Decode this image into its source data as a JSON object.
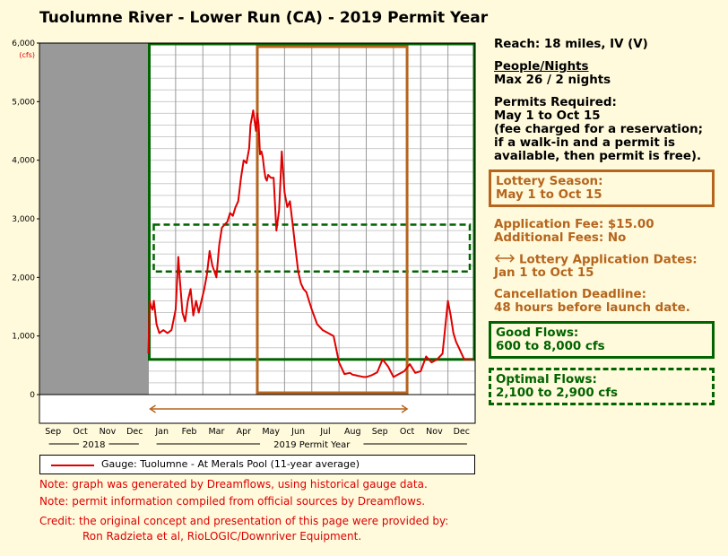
{
  "title": "Tuolumne River - Lower Run (CA) - 2019 Permit Year",
  "colors": {
    "flow_line": "#e00000",
    "permit_brown": "#b5651d",
    "good_green": "#006400",
    "past_gray": "#999999"
  },
  "chart_data": {
    "type": "line",
    "ylim": [
      0,
      6000
    ],
    "y_ticks": [
      "0",
      "1,000",
      "2,000",
      "3,000",
      "4,000",
      "5,000",
      "6,000"
    ],
    "y_unit": "(cfs)",
    "months": [
      "Sep",
      "Oct",
      "Nov",
      "Dec",
      "Jan",
      "Feb",
      "Mar",
      "Apr",
      "May",
      "Jun",
      "Jul",
      "Aug",
      "Sep",
      "Oct",
      "Nov",
      "Dec"
    ],
    "year_labels": {
      "prev": "2018",
      "current": "2019 Permit Year"
    },
    "past_months_shaded": 4,
    "series": [
      {
        "name": "Gauge: Tuolumne - At Merals Pool (11-year average)",
        "x_month": [
          4.0,
          4.05,
          4.1,
          4.15,
          4.2,
          4.3,
          4.4,
          4.55,
          4.7,
          4.85,
          5.0,
          5.1,
          5.15,
          5.25,
          5.35,
          5.45,
          5.55,
          5.65,
          5.75,
          5.85,
          5.95,
          6.05,
          6.15,
          6.25,
          6.35,
          6.5,
          6.6,
          6.7,
          6.8,
          6.9,
          7.0,
          7.1,
          7.2,
          7.3,
          7.4,
          7.5,
          7.6,
          7.7,
          7.75,
          7.85,
          7.95,
          8.0,
          8.05,
          8.1,
          8.15,
          8.2,
          8.25,
          8.3,
          8.35,
          8.4,
          8.5,
          8.6,
          8.7,
          8.8,
          8.9,
          9.0,
          9.1,
          9.2,
          9.3,
          9.4,
          9.5,
          9.6,
          9.7,
          9.8,
          9.9,
          10.0,
          10.2,
          10.4,
          10.6,
          10.8,
          11.0,
          11.2,
          11.4,
          11.5,
          11.6,
          11.7,
          11.8,
          11.9,
          12.0,
          12.2,
          12.4,
          12.6,
          12.8,
          13.0,
          13.2,
          13.4,
          13.6,
          13.8,
          14.0,
          14.2,
          14.4,
          14.6,
          14.8,
          15.0,
          15.1,
          15.2,
          15.3,
          15.4,
          15.5,
          15.6,
          15.7,
          15.8,
          15.9
        ],
        "y_cfs": [
          700,
          1600,
          1500,
          1450,
          1600,
          1200,
          1050,
          1100,
          1050,
          1100,
          1450,
          2350,
          2000,
          1400,
          1250,
          1600,
          1800,
          1350,
          1600,
          1400,
          1600,
          1800,
          2050,
          2450,
          2200,
          2000,
          2550,
          2850,
          2900,
          2950,
          3100,
          3050,
          3200,
          3300,
          3700,
          4000,
          3950,
          4200,
          4600,
          4850,
          4500,
          4800,
          4600,
          4100,
          4150,
          4050,
          3850,
          3700,
          3650,
          3750,
          3700,
          3700,
          2800,
          3150,
          4150,
          3450,
          3200,
          3300,
          2900,
          2500,
          2100,
          1900,
          1800,
          1750,
          1600,
          1450,
          1200,
          1100,
          1050,
          1000,
          550,
          350,
          370,
          340,
          330,
          320,
          310,
          300,
          300,
          330,
          380,
          600,
          480,
          300,
          350,
          400,
          520,
          370,
          400,
          650,
          550,
          600,
          700,
          1600,
          1350,
          1050,
          900,
          800,
          700,
          600,
          600,
          600,
          600
        ]
      }
    ]
  },
  "overlays": {
    "permit_window_months": [
      8.0,
      13.5
    ],
    "optimal_cfs": [
      2100,
      2900
    ],
    "good_cfs_min": 600,
    "good_window_months": [
      4.0,
      16.0
    ],
    "lottery_arrow_months": [
      4.0,
      13.5
    ]
  },
  "side": {
    "reach": "Reach: 18 miles, IV (V)",
    "people_title": "People/Nights",
    "people_value": "Max 26 / 2 nights",
    "permits_title": "Permits Required:",
    "permits_dates": "May 1 to Oct 15",
    "permits_note": [
      "(fee charged for a reservation;",
      "if a walk-in and a permit is",
      "available, then permit is free)."
    ],
    "lottery_title": "Lottery Season:",
    "lottery_dates": "May 1 to Oct 15",
    "app_fee": "Application Fee: $15.00",
    "add_fees": "Additional Fees: No",
    "lottery_app_title": "Lottery Application Dates:",
    "lottery_app_dates": "Jan 1 to Oct 15",
    "cancel_title": "Cancellation Deadline:",
    "cancel_value": "48 hours before launch date.",
    "good_title": "Good Flows:",
    "good_value": "600 to 8,000 cfs",
    "optimal_title": "Optimal Flows:",
    "optimal_value": "2,100 to 2,900 cfs"
  },
  "notes": {
    "note1": "Note: graph was generated by Dreamflows, using historical gauge data.",
    "note2": "Note: permit information compiled from official sources by Dreamflows.",
    "credit1": "Credit: the original concept and presentation of this page were provided by:",
    "credit2": "Ron Radzieta et al, RioLOGIC/Downriver Equipment."
  }
}
